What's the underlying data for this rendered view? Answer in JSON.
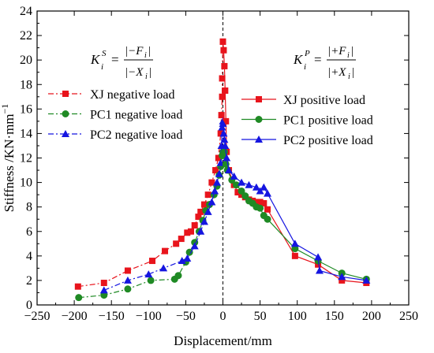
{
  "chart_data": {
    "type": "line",
    "xlabel": "Displacement/mm",
    "ylabel": "Stiffness /KN·mm",
    "ylabel_superscript": "−1",
    "xlim": [
      -250,
      250
    ],
    "ylim": [
      0,
      24
    ],
    "x_ticks": [
      "−250",
      "−200",
      "−150",
      "−100",
      "−50",
      "0",
      "50",
      "100",
      "150",
      "200",
      "250"
    ],
    "y_ticks": [
      "0",
      "2",
      "4",
      "6",
      "8",
      "10",
      "12",
      "14",
      "16",
      "18",
      "20",
      "22",
      "24"
    ],
    "grid": false,
    "zero_line": true,
    "formulas": {
      "negative": {
        "symbol": "K",
        "subscript": "i",
        "superscript": "S",
        "numerator": "|−F",
        "numerator_sub": "i",
        "denominator": "|−X",
        "denominator_sub": "i"
      },
      "positive": {
        "symbol": "K",
        "subscript": "i",
        "superscript": "P",
        "numerator": "|+F",
        "numerator_sub": "i",
        "denominator": "|+X",
        "denominator_sub": "i"
      }
    },
    "series": [
      {
        "name": "XJ negative load",
        "color": "#e8141c",
        "marker": "square",
        "dash": "dashdot",
        "points": [
          [
            -195,
            1.5
          ],
          [
            -160,
            1.8
          ],
          [
            -128,
            2.8
          ],
          [
            -95,
            3.6
          ],
          [
            -78,
            4.4
          ],
          [
            -63,
            5.0
          ],
          [
            -56,
            5.4
          ],
          [
            -48,
            5.9
          ],
          [
            -43,
            6.0
          ],
          [
            -38,
            6.5
          ],
          [
            -33,
            7.2
          ],
          [
            -30,
            7.6
          ],
          [
            -25,
            8.2
          ],
          [
            -20,
            9.0
          ],
          [
            -15,
            10.0
          ],
          [
            -10,
            11.0
          ],
          [
            -6,
            12.0
          ],
          [
            -3,
            14.0
          ],
          [
            -2,
            15.5
          ],
          [
            -1,
            17.0
          ],
          [
            -1,
            18.5
          ],
          [
            0,
            21.5
          ]
        ]
      },
      {
        "name": "PC1 negative load",
        "color": "#1f8a24",
        "marker": "circle",
        "dash": "dashdot",
        "points": [
          [
            -194,
            0.6
          ],
          [
            -160,
            0.8
          ],
          [
            -128,
            1.3
          ],
          [
            -97,
            2.0
          ],
          [
            -65,
            2.1
          ],
          [
            -60,
            2.4
          ],
          [
            -50,
            3.5
          ],
          [
            -45,
            4.3
          ],
          [
            -38,
            5.1
          ],
          [
            -32,
            6.0
          ],
          [
            -27,
            6.9
          ],
          [
            -23,
            7.7
          ],
          [
            -18,
            8.2
          ],
          [
            -12,
            9.0
          ],
          [
            -8,
            9.7
          ],
          [
            -5,
            10.6
          ],
          [
            -3,
            11.3
          ],
          [
            -1,
            12.2
          ],
          [
            0,
            12.5
          ]
        ]
      },
      {
        "name": "PC2 negative load",
        "color": "#1515e0",
        "marker": "triangle",
        "dash": "dashdot",
        "points": [
          [
            -160,
            1.2
          ],
          [
            -128,
            2.0
          ],
          [
            -100,
            2.5
          ],
          [
            -80,
            3.0
          ],
          [
            -55,
            3.6
          ],
          [
            -48,
            3.8
          ],
          [
            -38,
            4.8
          ],
          [
            -30,
            6.0
          ],
          [
            -25,
            6.8
          ],
          [
            -20,
            7.6
          ],
          [
            -15,
            8.4
          ],
          [
            -11,
            9.3
          ],
          [
            -8,
            10.0
          ],
          [
            -5,
            10.7
          ],
          [
            -3,
            11.6
          ],
          [
            -2,
            13.0
          ],
          [
            -1,
            14.5
          ],
          [
            0,
            15.0
          ]
        ]
      },
      {
        "name": "XJ positive load",
        "color": "#e8141c",
        "marker": "square",
        "dash": "solid",
        "points": [
          [
            0,
            21.5
          ],
          [
            1,
            20.8
          ],
          [
            2,
            19.5
          ],
          [
            3,
            17.5
          ],
          [
            4,
            15.0
          ],
          [
            5,
            12.5
          ],
          [
            8,
            11.0
          ],
          [
            15,
            9.8
          ],
          [
            20,
            9.2
          ],
          [
            25,
            9.0
          ],
          [
            30,
            8.8
          ],
          [
            35,
            8.6
          ],
          [
            40,
            8.5
          ],
          [
            45,
            8.4
          ],
          [
            50,
            8.4
          ],
          [
            55,
            8.3
          ],
          [
            60,
            7.8
          ],
          [
            97,
            4.0
          ],
          [
            128,
            3.3
          ],
          [
            160,
            2.0
          ],
          [
            193,
            1.8
          ]
        ]
      },
      {
        "name": "PC1 positive load",
        "color": "#1f8a24",
        "marker": "circle",
        "dash": "solid",
        "points": [
          [
            0,
            12.2
          ],
          [
            2,
            12.5
          ],
          [
            4,
            11.5
          ],
          [
            6,
            11.0
          ],
          [
            12,
            10.2
          ],
          [
            18,
            9.8
          ],
          [
            25,
            9.3
          ],
          [
            30,
            8.9
          ],
          [
            35,
            8.5
          ],
          [
            40,
            8.3
          ],
          [
            45,
            8.0
          ],
          [
            50,
            7.9
          ],
          [
            55,
            7.3
          ],
          [
            60,
            7.0
          ],
          [
            97,
            4.6
          ],
          [
            128,
            3.6
          ],
          [
            160,
            2.6
          ],
          [
            193,
            2.1
          ]
        ]
      },
      {
        "name": "PC2 positive load",
        "color": "#1515e0",
        "marker": "triangle",
        "dash": "solid",
        "points": [
          [
            0,
            14.8
          ],
          [
            1,
            14.0
          ],
          [
            2,
            13.5
          ],
          [
            3,
            13.0
          ],
          [
            5,
            12.0
          ],
          [
            8,
            11.0
          ],
          [
            15,
            10.5
          ],
          [
            25,
            10.0
          ],
          [
            35,
            9.8
          ],
          [
            45,
            9.6
          ],
          [
            50,
            9.3
          ],
          [
            55,
            9.6
          ],
          [
            60,
            9.1
          ],
          [
            97,
            5.0
          ],
          [
            128,
            3.9
          ],
          [
            130,
            2.8
          ],
          [
            160,
            2.3
          ],
          [
            193,
            2.0
          ]
        ]
      }
    ],
    "legend_negative": [
      "XJ negative load",
      "PC1 negative load",
      "PC2 negative load"
    ],
    "legend_positive": [
      "XJ positive load",
      "PC1 positive load",
      "PC2 positive load"
    ]
  }
}
